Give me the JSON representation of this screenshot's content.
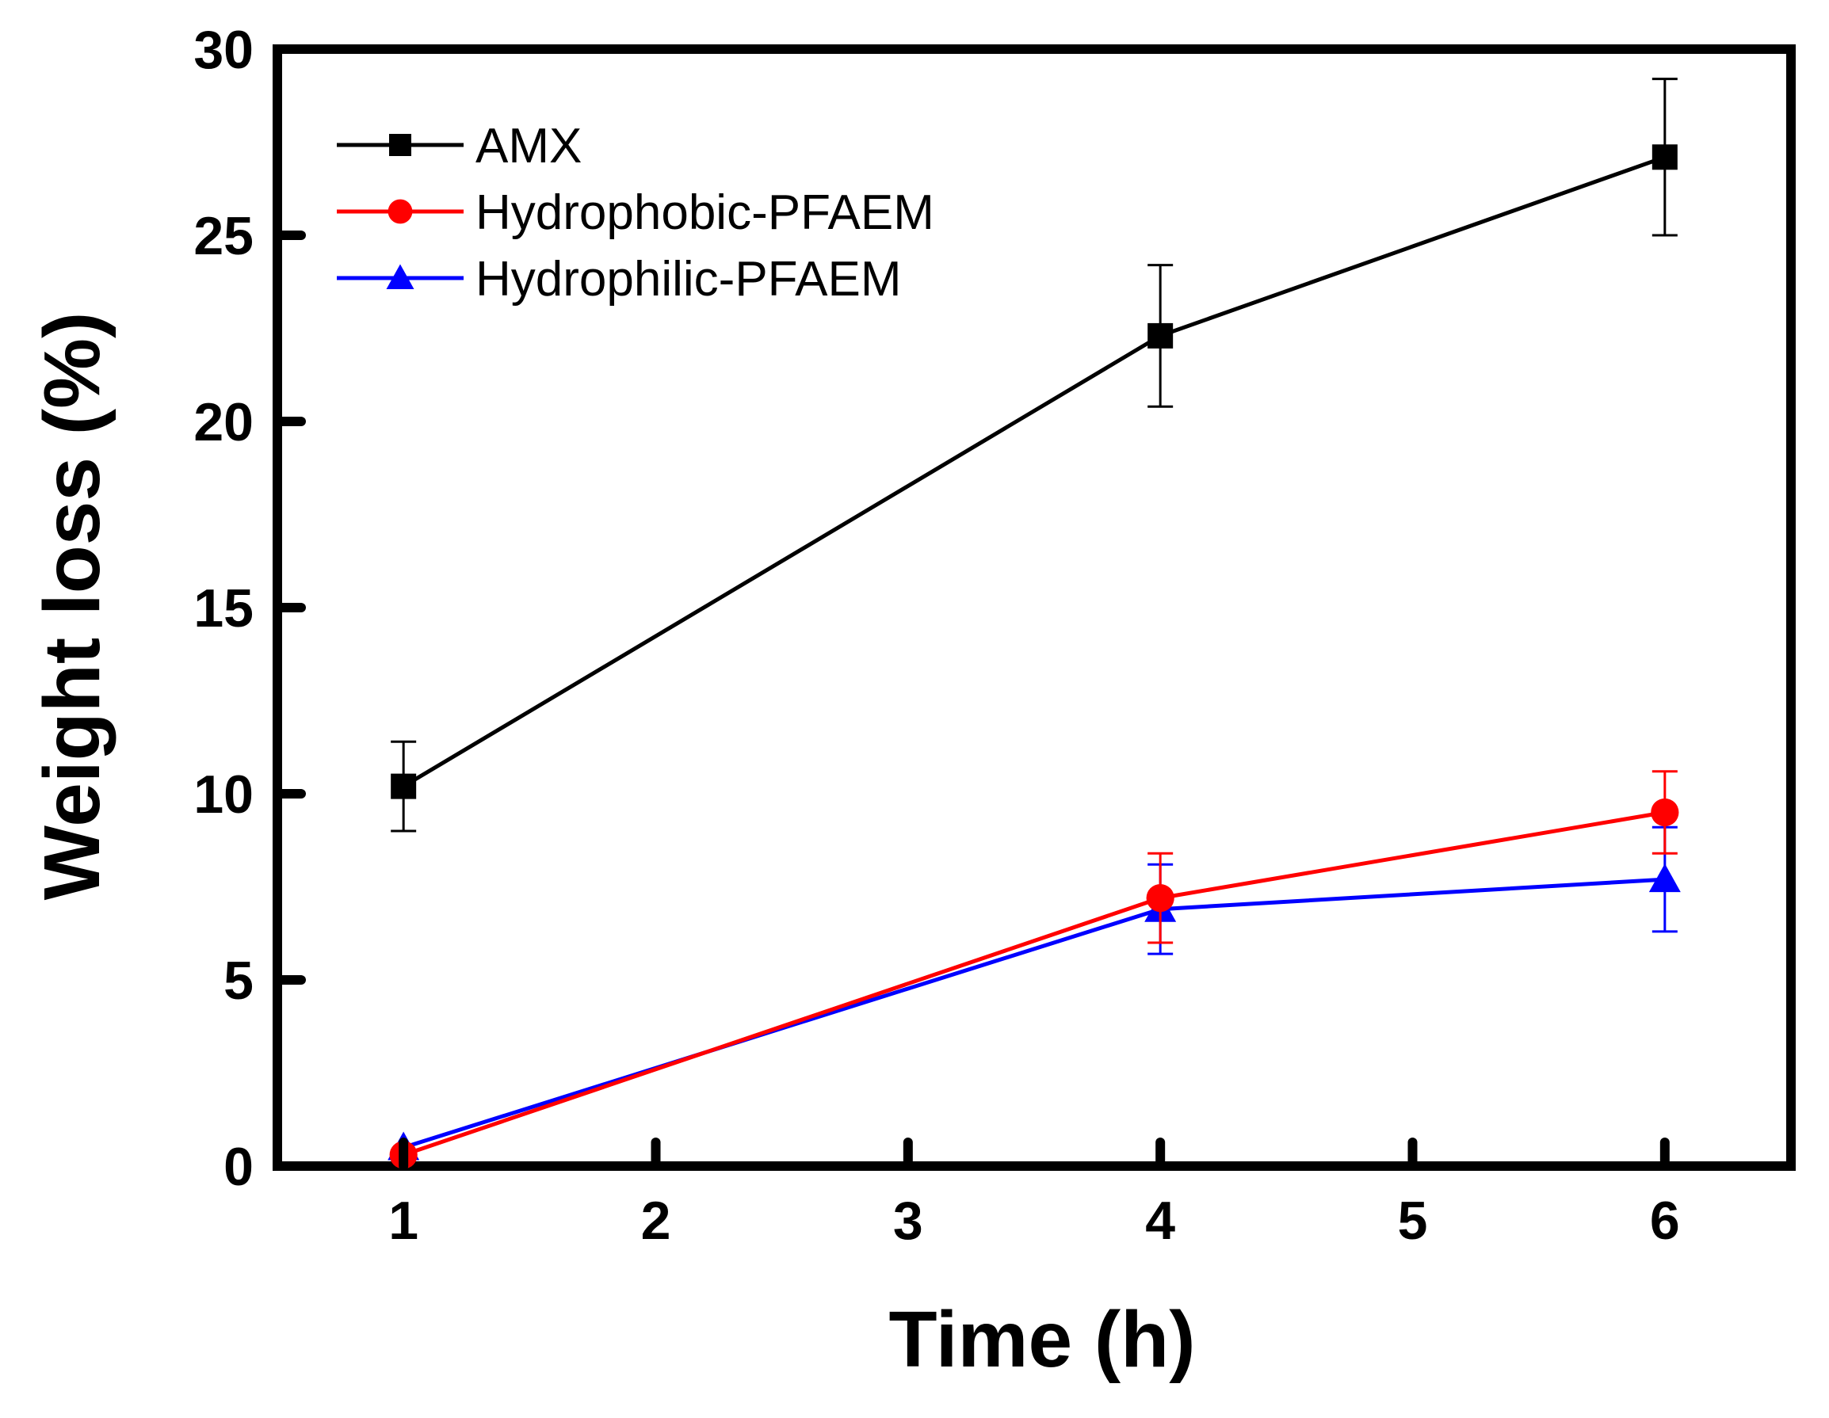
{
  "chart_data": {
    "type": "line",
    "xlabel": "Time (h)",
    "ylabel": "Weight loss (%)",
    "xlim": [
      0.5,
      6.5
    ],
    "ylim": [
      0,
      30
    ],
    "xticks": [
      1,
      2,
      3,
      4,
      5,
      6
    ],
    "yticks": [
      0,
      5,
      10,
      15,
      20,
      25,
      30
    ],
    "x_tick_labels": [
      "1",
      "2",
      "3",
      "4",
      "5",
      "6"
    ],
    "y_tick_labels": [
      "0",
      "5",
      "10",
      "15",
      "20",
      "25",
      "30"
    ],
    "grid": false,
    "legend_position": "top-left",
    "x": [
      1,
      4,
      6
    ],
    "series": [
      {
        "name": "AMX",
        "color": "#000000",
        "marker": "square",
        "values": [
          10.2,
          22.3,
          27.1
        ],
        "errors": [
          1.2,
          1.9,
          2.1
        ]
      },
      {
        "name": "Hydrophobic-PFAEM",
        "color": "#ff0000",
        "marker": "circle",
        "values": [
          0.3,
          7.2,
          9.5
        ],
        "errors": [
          0.0,
          1.2,
          1.1
        ]
      },
      {
        "name": "Hydrophilic-PFAEM",
        "color": "#0000ff",
        "marker": "triangle",
        "values": [
          0.5,
          6.9,
          7.7
        ],
        "errors": [
          0.0,
          1.2,
          1.4
        ]
      }
    ]
  }
}
